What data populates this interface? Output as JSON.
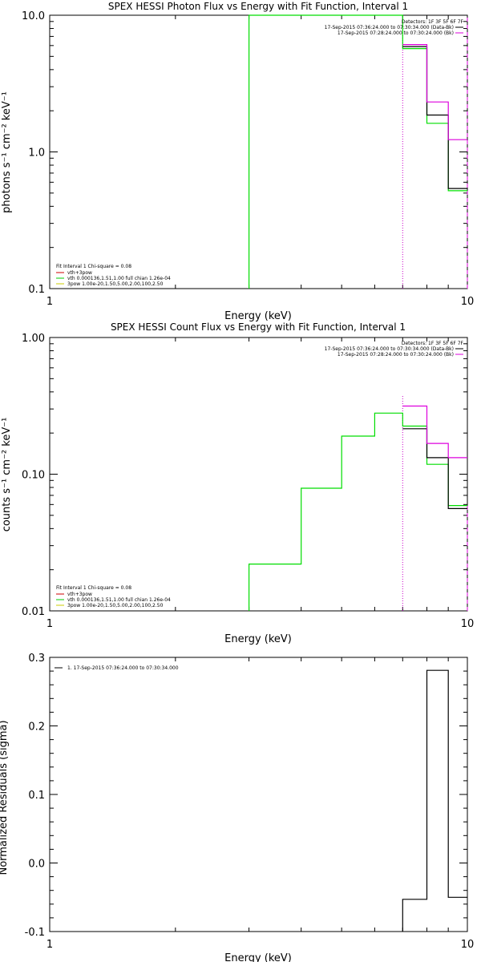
{
  "chart_data": [
    {
      "type": "line",
      "title": "SPEX HESSI Photon Flux vs Energy with Fit Function, Interval 1",
      "xlabel": "Energy (keV)",
      "ylabel": "photons s⁻¹ cm⁻² keV⁻¹",
      "xscale": "log",
      "yscale": "log",
      "xlim": [
        1,
        10
      ],
      "ylim": [
        0.1,
        10
      ],
      "x_ticks": [
        "1",
        "10"
      ],
      "y_ticks": [
        "0.1",
        "1.0",
        "10.0"
      ],
      "detectors": [
        "Detectors: 1F 3F 5F 6F 7F",
        "17-Sep-2015 07:36:24.000 to 07:30:34.000 (Data-Bk)",
        "17-Sep-2015 07:28:24.000 to 07:30:24.000 (Bk)"
      ],
      "legend": {
        "header": "Fit Interval 1    Chi-square = 0.08",
        "items": [
          "vth+3pow",
          "vth 0.000136,1.51,1.00  full chian 1.26e-04",
          "3pow 1.00e-20,1.50,5.00,2.00,100,2.50"
        ],
        "colors": [
          "#cc0000",
          "#00cc00",
          "#cccc00"
        ]
      },
      "series": [
        {
          "color": "#00dd00",
          "x": [
            3.0,
            3.0,
            7.0,
            7.0,
            8.0,
            8.0,
            9.0,
            9.0,
            10.0
          ],
          "y": [
            0.1,
            10.0,
            10.0,
            5.7,
            5.7,
            1.62,
            1.62,
            0.52,
            0.52
          ]
        },
        {
          "color": "#000000",
          "x": [
            7.0,
            8.0,
            8.0,
            9.0,
            9.0,
            10.0
          ],
          "y": [
            5.9,
            5.9,
            1.86,
            1.86,
            0.54,
            0.54
          ]
        },
        {
          "color": "#dd00dd",
          "x": [
            7.0,
            8.0,
            8.0,
            9.0,
            9.0,
            10.0
          ],
          "y": [
            6.1,
            6.1,
            2.32,
            2.32,
            1.23,
            1.23
          ]
        }
      ],
      "vlines": [
        {
          "x": 7.0,
          "color": "#cc00cc",
          "style": "dotted"
        },
        {
          "x": 10.0,
          "color": "#dd00dd",
          "style": "dashed"
        }
      ]
    },
    {
      "type": "line",
      "title": "SPEX HESSI Count Flux vs Energy with Fit Function, Interval 1",
      "xlabel": "Energy (keV)",
      "ylabel": "counts s⁻¹ cm⁻² keV⁻¹",
      "xscale": "log",
      "yscale": "log",
      "xlim": [
        1,
        10
      ],
      "ylim": [
        0.01,
        1
      ],
      "x_ticks": [
        "1",
        "10"
      ],
      "y_ticks": [
        "0.01",
        "0.10",
        "1.00"
      ],
      "detectors": [
        "Detectors: 1F 3F 5F 6F 7F",
        "17-Sep-2015 07:36:24.000 to 07:30:34.000 (Data-Bk)",
        "17-Sep-2015 07:28:24.000 to 07:30:24.000 (Bk)"
      ],
      "legend": {
        "header": "Fit Interval 1    Chi-square = 0.08",
        "items": [
          "vth+3pow",
          "vth 0.000136,1.51,1.00  full chian 1.26e-04",
          "3pow 1.00e-20,1.50,5.00,2.00,100,2.50"
        ],
        "colors": [
          "#cc0000",
          "#00cc00",
          "#cccc00"
        ]
      },
      "series": [
        {
          "color": "#00dd00",
          "x": [
            3.0,
            3.0,
            4.0,
            4.0,
            5.0,
            5.0,
            6.0,
            6.0,
            7.0,
            7.0,
            8.0,
            8.0,
            9.0,
            9.0,
            10.0
          ],
          "y": [
            0.01,
            0.022,
            0.022,
            0.079,
            0.079,
            0.19,
            0.19,
            0.28,
            0.28,
            0.225,
            0.225,
            0.118,
            0.118,
            0.059,
            0.059
          ]
        },
        {
          "color": "#000000",
          "x": [
            7.0,
            8.0,
            8.0,
            9.0,
            9.0,
            10.0
          ],
          "y": [
            0.215,
            0.215,
            0.132,
            0.132,
            0.056,
            0.056
          ]
        },
        {
          "color": "#dd00dd",
          "x": [
            7.0,
            8.0,
            8.0,
            9.0,
            9.0,
            10.0
          ],
          "y": [
            0.315,
            0.315,
            0.168,
            0.168,
            0.132,
            0.132
          ]
        }
      ],
      "vlines": [
        {
          "x": 7.0,
          "color": "#cc00cc",
          "style": "dotted",
          "y_top": 0.38
        },
        {
          "x": 10.0,
          "color": "#dd00dd",
          "style": "dashed",
          "y_top": 0.06
        }
      ]
    },
    {
      "type": "line",
      "title": "",
      "xlabel": "Energy (keV)",
      "ylabel": "Normalized Residuals (sigma)",
      "xscale": "log",
      "yscale": "linear",
      "xlim": [
        1,
        10
      ],
      "ylim": [
        -0.1,
        0.3
      ],
      "x_ticks": [
        "1",
        "10"
      ],
      "y_ticks": [
        "-0.1",
        "0.0",
        "0.1",
        "0.2",
        "0.3"
      ],
      "legend": {
        "items": [
          "1. 17-Sep-2015 07:36:24.000 to 07:30:34.000"
        ],
        "colors": [
          "#000000"
        ]
      },
      "series": [
        {
          "color": "#000000",
          "x": [
            7.0,
            7.0,
            8.0,
            8.0,
            9.0,
            9.0,
            10.0
          ],
          "y": [
            -0.1,
            -0.053,
            -0.053,
            0.281,
            0.281,
            -0.05,
            -0.05
          ]
        }
      ]
    }
  ]
}
